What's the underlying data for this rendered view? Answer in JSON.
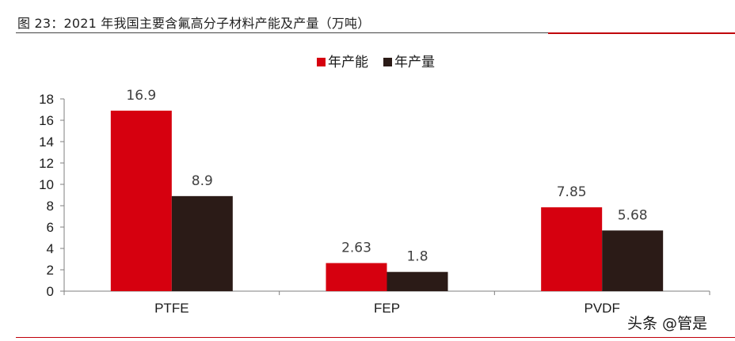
{
  "header": {
    "title": "图 23：2021 年我国主要含氟高分子材料产能及产量（万吨）"
  },
  "watermark": "头条 @管是",
  "colors": {
    "capacity": "#d6000f",
    "output": "#2b1b17",
    "axis": "#7f7f7f",
    "text": "#1a1a1a",
    "label": "#404040"
  },
  "chart_data": {
    "type": "bar",
    "title": "",
    "xlabel": "",
    "ylabel": "",
    "categories": [
      "PTFE",
      "FEP",
      "PVDF"
    ],
    "series": [
      {
        "name": "年产能",
        "values": [
          16.9,
          2.63,
          7.85
        ],
        "labels": [
          "16.9",
          "2.63",
          "7.85"
        ]
      },
      {
        "name": "年产量",
        "values": [
          8.9,
          1.8,
          5.68
        ],
        "labels": [
          "8.9",
          "1.8",
          "5.68"
        ]
      }
    ],
    "ylim": [
      0,
      18
    ],
    "yticks": [
      0,
      2,
      4,
      6,
      8,
      10,
      12,
      14,
      16,
      18
    ],
    "grid": false,
    "legend_position": "top-center"
  }
}
